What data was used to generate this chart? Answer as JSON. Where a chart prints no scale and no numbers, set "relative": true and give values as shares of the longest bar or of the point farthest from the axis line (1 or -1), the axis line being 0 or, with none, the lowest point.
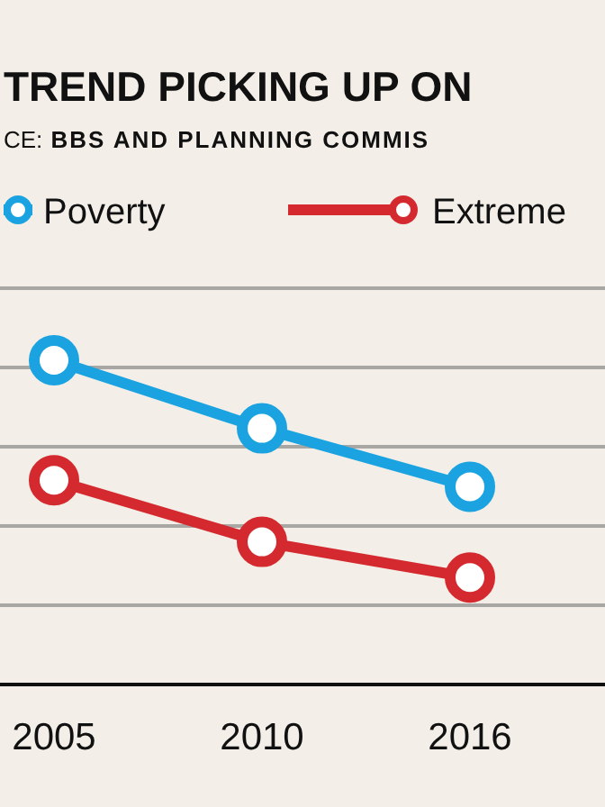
{
  "chart_data": {
    "type": "line",
    "title": "TREND PICKING UP ON",
    "subtitle": "CE: BBS AND PLANNING COMMIS",
    "categories": [
      "2005",
      "2010",
      "2016"
    ],
    "series": [
      {
        "name": "Poverty",
        "color": "#1aa3e0",
        "values": [
          1,
          0.79,
          0.61
        ]
      },
      {
        "name": "Extreme",
        "color": "#d42a2f",
        "values": [
          0.63,
          0.44,
          0.33
        ]
      }
    ],
    "relative": true,
    "grid": true,
    "legend": "top",
    "marker": "circle"
  }
}
